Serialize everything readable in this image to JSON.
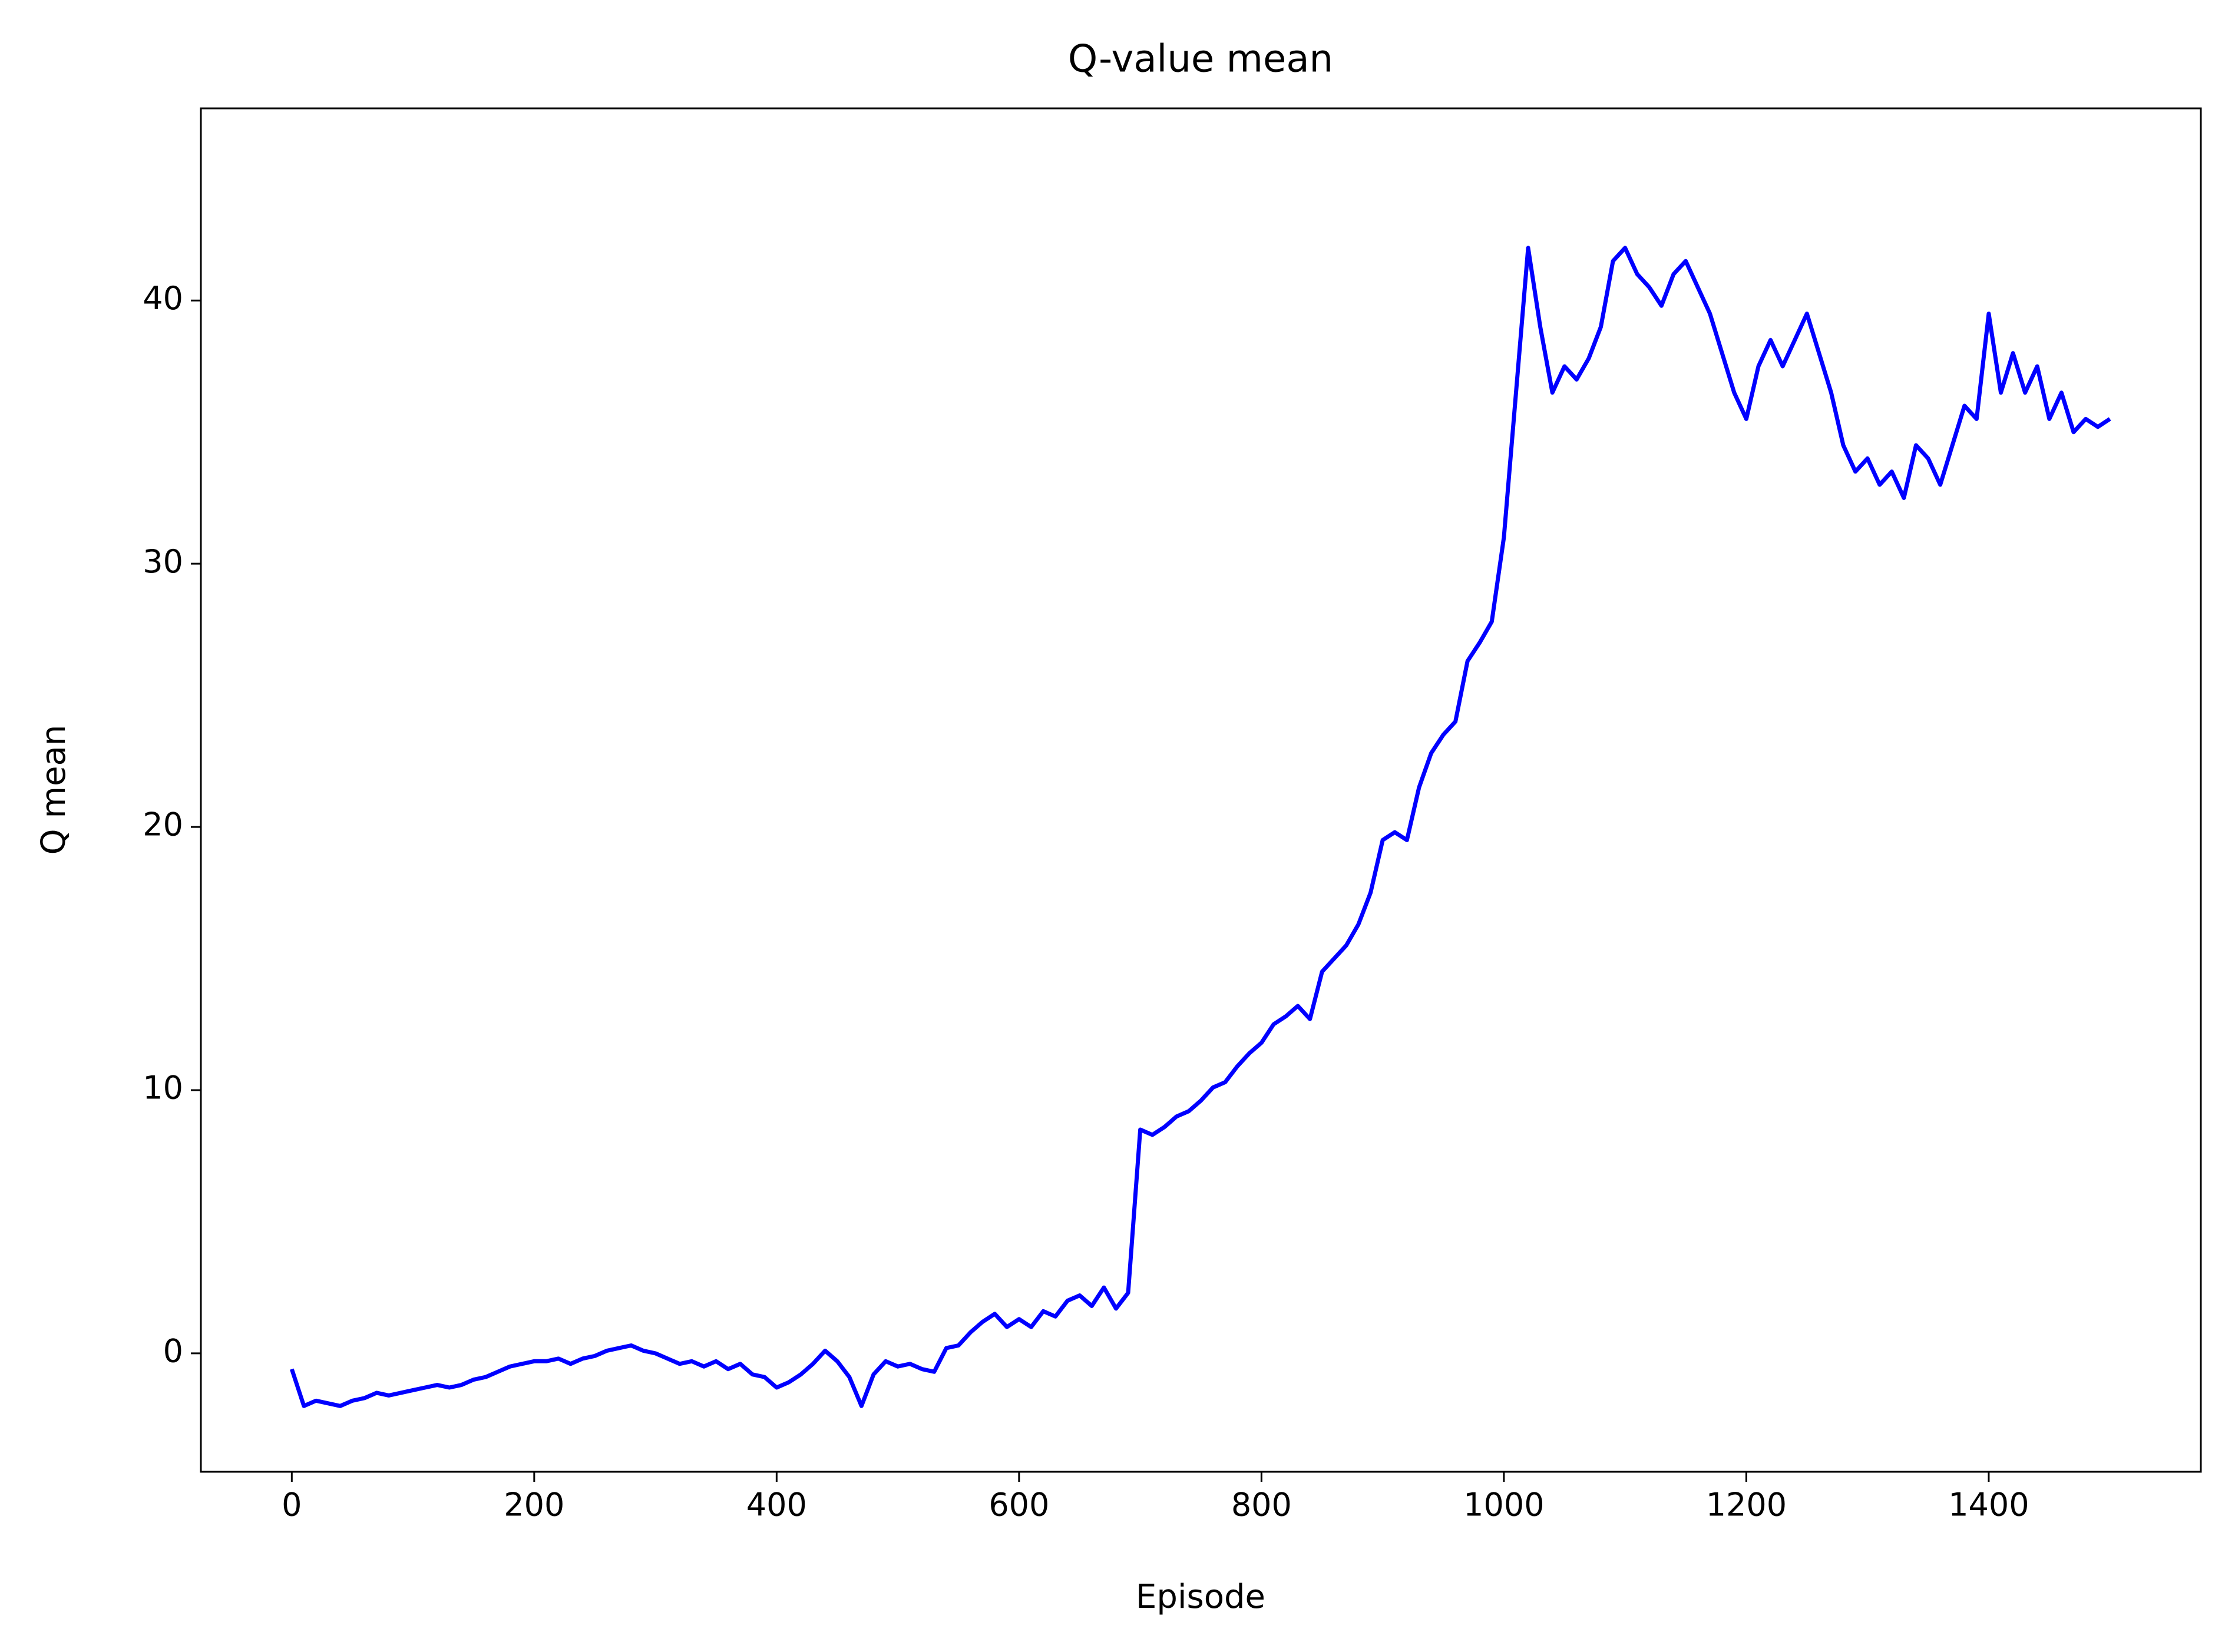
{
  "chart_data": {
    "type": "line",
    "title": "Q-value mean",
    "xlabel": "Episode",
    "ylabel": "Q mean",
    "x": [
      0,
      10,
      20,
      30,
      40,
      50,
      60,
      70,
      80,
      90,
      100,
      110,
      120,
      130,
      140,
      150,
      160,
      170,
      180,
      190,
      200,
      210,
      220,
      230,
      240,
      250,
      260,
      270,
      280,
      290,
      300,
      310,
      320,
      330,
      340,
      350,
      360,
      370,
      380,
      390,
      400,
      410,
      420,
      430,
      440,
      450,
      460,
      470,
      480,
      490,
      500,
      510,
      520,
      530,
      540,
      550,
      560,
      570,
      580,
      590,
      600,
      610,
      620,
      630,
      640,
      650,
      660,
      670,
      680,
      690,
      700,
      710,
      720,
      730,
      740,
      750,
      760,
      770,
      780,
      790,
      800,
      810,
      820,
      830,
      840,
      850,
      860,
      870,
      880,
      890,
      900,
      910,
      920,
      930,
      940,
      950,
      960,
      970,
      980,
      990,
      1000,
      1010,
      1020,
      1030,
      1040,
      1050,
      1060,
      1070,
      1080,
      1090,
      1100,
      1110,
      1120,
      1130,
      1140,
      1150,
      1160,
      1170,
      1180,
      1190,
      1200,
      1210,
      1220,
      1230,
      1240,
      1250,
      1260,
      1270,
      1280,
      1290,
      1300,
      1310,
      1320,
      1330,
      1340,
      1350,
      1360,
      1370,
      1380,
      1390,
      1400,
      1410,
      1420,
      1430,
      1440,
      1450,
      1460,
      1470,
      1480,
      1490,
      1500
    ],
    "series": [
      {
        "name": "Q mean",
        "color": "#0000ff",
        "values": [
          -0.6,
          -2.0,
          -1.8,
          -1.9,
          -2.0,
          -1.8,
          -1.7,
          -1.5,
          -1.6,
          -1.5,
          -1.4,
          -1.3,
          -1.2,
          -1.3,
          -1.2,
          -1.0,
          -0.9,
          -0.7,
          -0.5,
          -0.4,
          -0.3,
          -0.3,
          -0.2,
          -0.4,
          -0.2,
          -0.1,
          0.1,
          0.2,
          0.3,
          0.1,
          0.0,
          -0.2,
          -0.4,
          -0.3,
          -0.5,
          -0.3,
          -0.6,
          -0.4,
          -0.8,
          -0.9,
          -1.3,
          -1.1,
          -0.8,
          -0.4,
          0.1,
          -0.3,
          -0.9,
          -2.0,
          -0.8,
          -0.3,
          -0.5,
          -0.4,
          -0.6,
          -0.7,
          0.2,
          0.3,
          0.8,
          1.2,
          1.5,
          1.0,
          1.3,
          1.0,
          1.6,
          1.4,
          2.0,
          2.2,
          1.8,
          2.5,
          1.7,
          2.3,
          8.5,
          8.3,
          8.6,
          9.0,
          9.2,
          9.6,
          10.1,
          10.3,
          10.9,
          11.4,
          11.8,
          12.5,
          12.8,
          13.2,
          12.7,
          14.5,
          15.0,
          15.5,
          16.3,
          17.5,
          19.5,
          19.8,
          19.5,
          21.5,
          22.8,
          23.5,
          24.0,
          26.3,
          27.0,
          27.8,
          31.0,
          36.5,
          42.0,
          39.0,
          36.5,
          37.5,
          37.0,
          37.8,
          39.0,
          41.5,
          42.0,
          41.0,
          40.5,
          39.8,
          41.0,
          41.5,
          40.5,
          39.5,
          38.0,
          36.5,
          35.5,
          37.5,
          38.5,
          37.5,
          38.5,
          39.5,
          38.0,
          36.5,
          34.5,
          33.5,
          34.0,
          33.0,
          33.5,
          32.5,
          34.5,
          34.0,
          33.0,
          34.5,
          36.0,
          35.5,
          39.5,
          36.5,
          38.0,
          36.5,
          37.5,
          35.5,
          36.5,
          35.0,
          35.5,
          35.2,
          35.5
        ]
      }
    ],
    "xlim": [
      -75,
      1575
    ],
    "ylim": [
      -4.5,
      47.3
    ],
    "xticks": [
      0,
      200,
      400,
      600,
      800,
      1000,
      1200,
      1400
    ],
    "yticks": [
      0,
      10,
      20,
      30,
      40
    ]
  }
}
